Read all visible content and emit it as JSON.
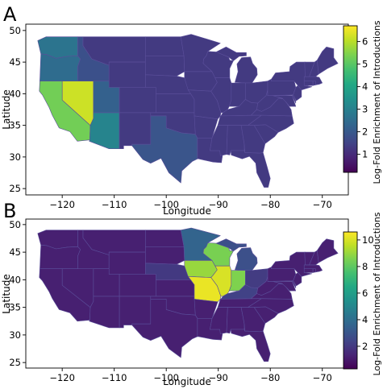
{
  "figure": {
    "panels": [
      {
        "letter": "A"
      },
      {
        "letter": "B"
      }
    ]
  },
  "chart_data": [
    {
      "type": "heatmap",
      "panel": "A",
      "xlabel": "Longitude",
      "ylabel": "Latitude",
      "xlim": [
        -127,
        -65
      ],
      "ylim": [
        24,
        51
      ],
      "x_ticks": [
        -120,
        -110,
        -100,
        -90,
        -80,
        -70
      ],
      "x_tick_labels": [
        "−120",
        "−110",
        "−100",
        "−90",
        "−80",
        "−70"
      ],
      "y_ticks": [
        25,
        30,
        35,
        40,
        45,
        50
      ],
      "y_tick_labels": [
        "25",
        "30",
        "35",
        "40",
        "45",
        "50"
      ],
      "colorbar": {
        "label": "Log-Fold Enrichment of Introductions",
        "range": [
          0.2,
          6.7
        ],
        "ticks": [
          1,
          2,
          3,
          4,
          5,
          6
        ],
        "tick_labels": [
          "1",
          "2",
          "3",
          "4",
          "5",
          "6"
        ],
        "colormap": "viridis"
      },
      "default_value": 1.3,
      "highlighted_regions": [
        {
          "region": "Nevada",
          "value": 6.2
        },
        {
          "region": "California",
          "value": 5.3
        },
        {
          "region": "Arizona",
          "value": 3.1
        },
        {
          "region": "Washington",
          "value": 2.7
        },
        {
          "region": "Oregon",
          "value": 2.5
        },
        {
          "region": "Utah",
          "value": 2.2
        },
        {
          "region": "Texas",
          "value": 1.9
        },
        {
          "region": "Idaho",
          "value": 1.8
        }
      ]
    },
    {
      "type": "heatmap",
      "panel": "B",
      "xlabel": "Longitude",
      "ylabel": "Latitude",
      "xlim": [
        -127,
        -65
      ],
      "ylim": [
        24,
        51
      ],
      "x_ticks": [
        -120,
        -110,
        -100,
        -90,
        -80,
        -70
      ],
      "x_tick_labels": [
        "−120",
        "−110",
        "−100",
        "−90",
        "−80",
        "−70"
      ],
      "y_ticks": [
        25,
        30,
        35,
        40,
        45,
        50
      ],
      "y_tick_labels": [
        "25",
        "30",
        "35",
        "40",
        "45",
        "50"
      ],
      "colorbar": {
        "label": "Log-Fold Enrichment of Introductions",
        "range": [
          0.3,
          10.6
        ],
        "ticks": [
          2,
          4,
          6,
          8,
          10
        ],
        "tick_labels": [
          "2",
          "4",
          "6",
          "8",
          "10"
        ],
        "colormap": "viridis"
      },
      "default_value": 1.2,
      "highlighted_regions": [
        {
          "region": "Missouri",
          "value": 10.3
        },
        {
          "region": "Illinois",
          "value": 10.0
        },
        {
          "region": "Iowa",
          "value": 9.0
        },
        {
          "region": "Wisconsin",
          "value": 8.5
        },
        {
          "region": "Indiana",
          "value": 8.6
        },
        {
          "region": "Minnesota",
          "value": 3.6
        },
        {
          "region": "Michigan",
          "value": 2.8
        },
        {
          "region": "Kentucky",
          "value": 2.3
        },
        {
          "region": "Ohio",
          "value": 2.1
        },
        {
          "region": "Nebraska",
          "value": 2.0
        }
      ]
    }
  ]
}
